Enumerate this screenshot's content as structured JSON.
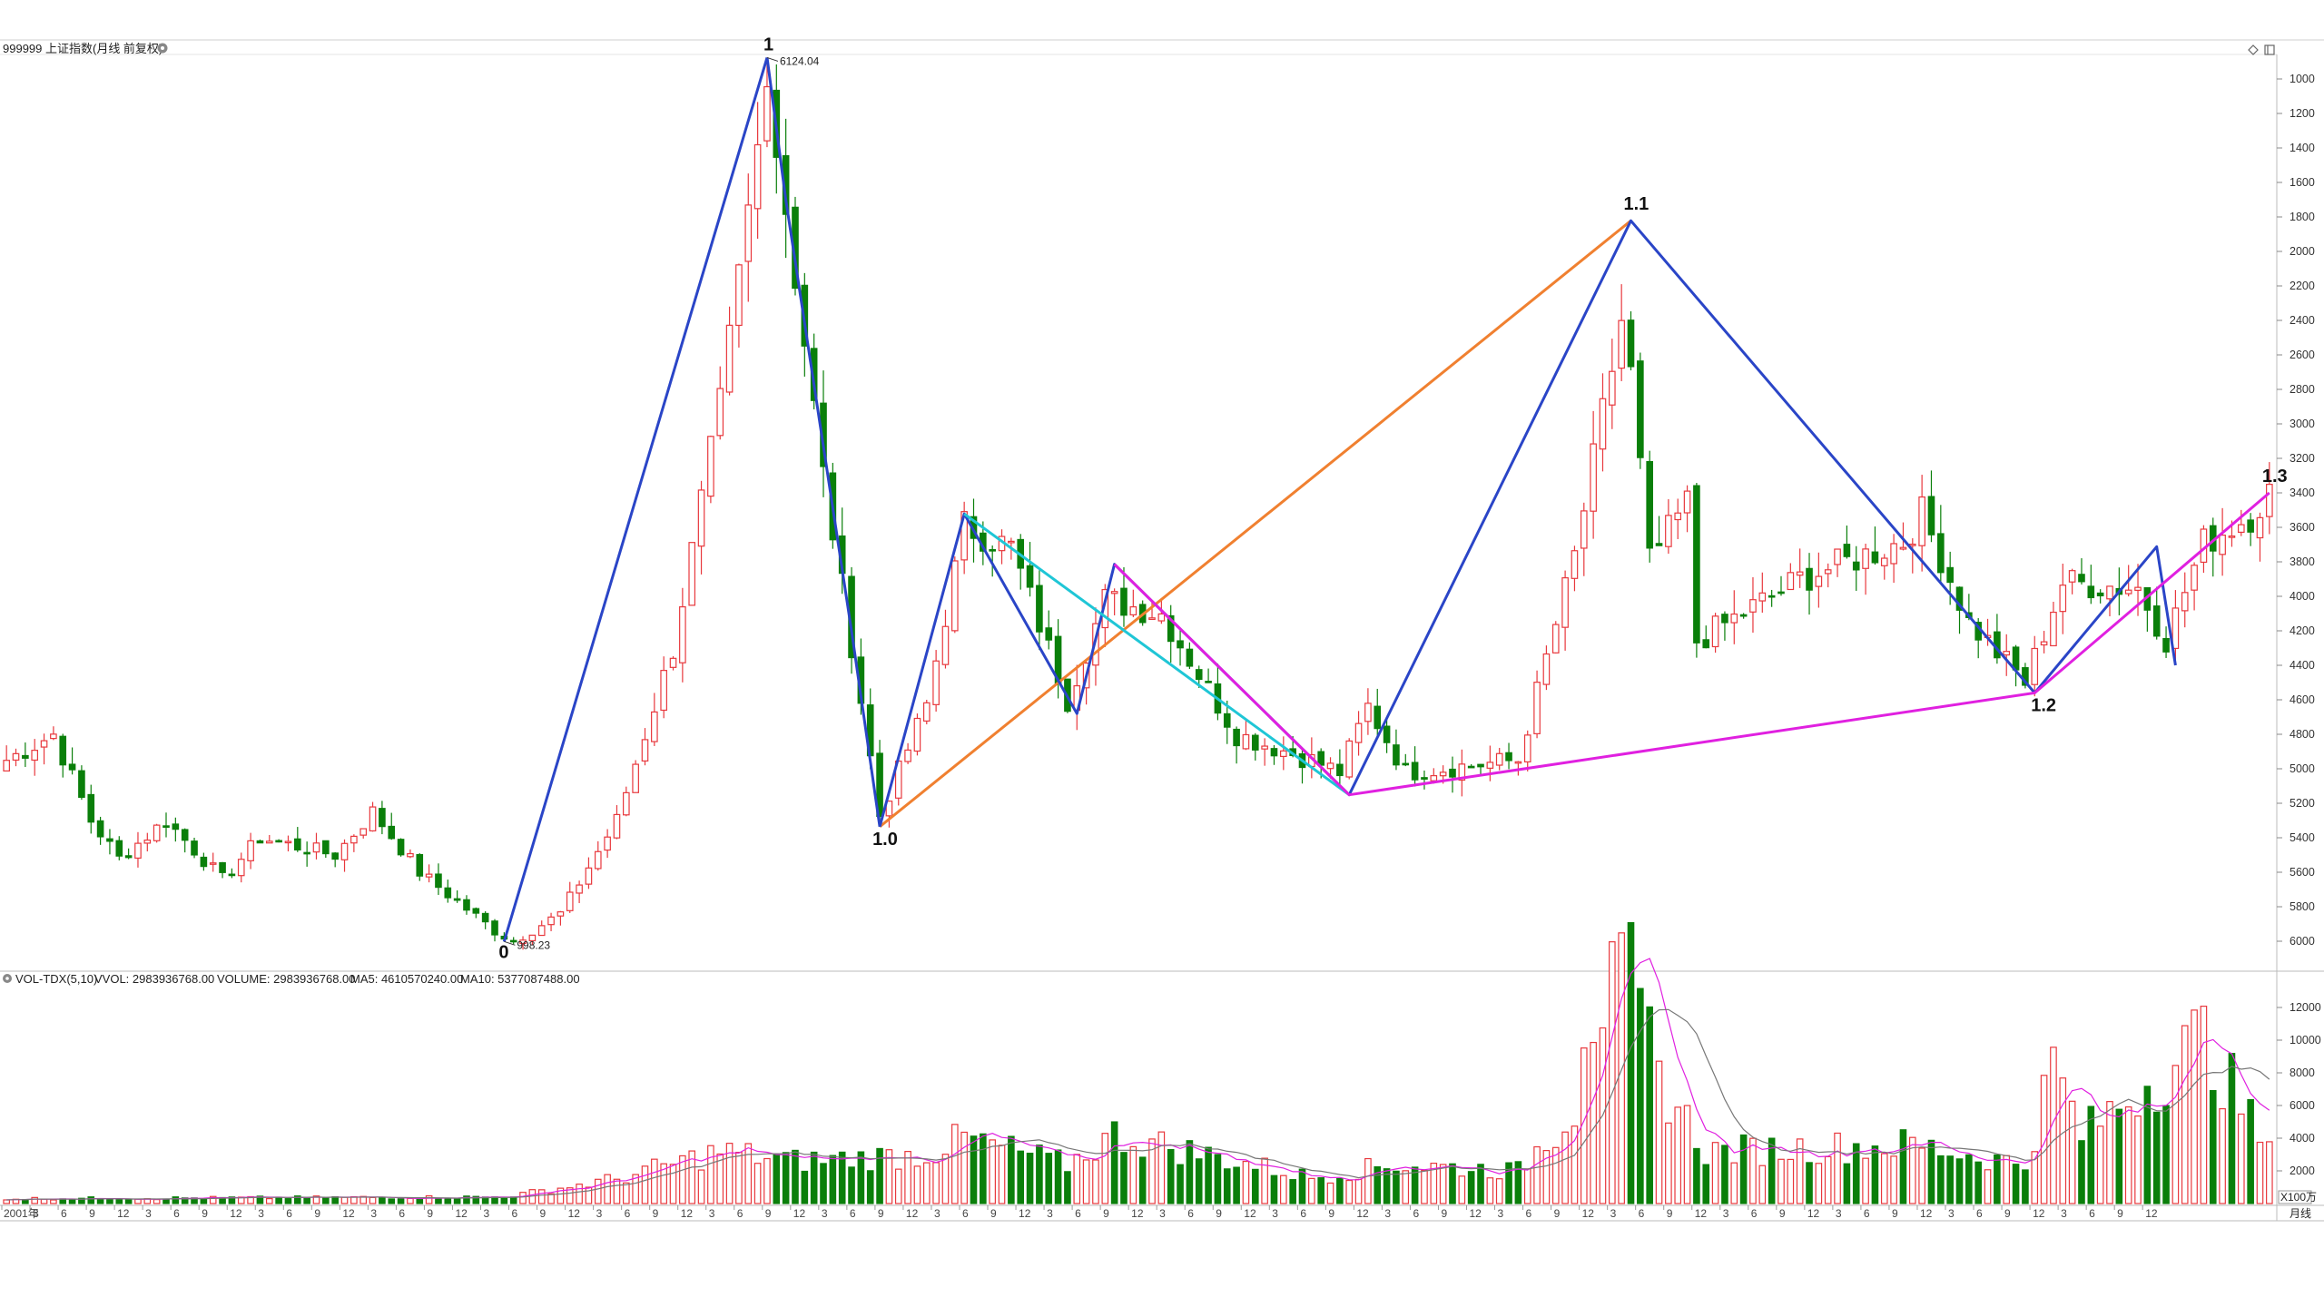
{
  "header": {
    "symbol_title": "999999 上证指数(月线 前复权)",
    "settings_icon": "gear-circle-icon",
    "top_right_icons": [
      "diamond-icon",
      "window-restore-icon"
    ]
  },
  "volume_header": {
    "name": "VOL-TDX(5,10)",
    "vvol": "VVOL: 2983936768.00",
    "volume": "VOLUME: 2983936768.00",
    "ma5": "MA5: 4610570240.00",
    "ma10": "MA10: 5377087488.00"
  },
  "price_axis_ticks": [
    "6000",
    "5800",
    "5600",
    "5400",
    "5200",
    "5000",
    "4800",
    "4600",
    "4400",
    "4200",
    "4000",
    "3800",
    "3600",
    "3400",
    "3200",
    "3000",
    "2800",
    "2600",
    "2400",
    "2200",
    "2000",
    "1800",
    "1600",
    "1400",
    "1200",
    "1000"
  ],
  "volume_axis_ticks": [
    "12000",
    "10000",
    "8000",
    "6000",
    "4000",
    "2000"
  ],
  "volume_unit": "X100万",
  "period_label": "月线",
  "time_axis_labels": [
    "2001年",
    "3",
    "6",
    "9",
    "12",
    "3",
    "6",
    "9",
    "12",
    "3",
    "6",
    "9",
    "12",
    "3",
    "6",
    "9",
    "12",
    "3",
    "6",
    "9",
    "12",
    "3",
    "6",
    "9",
    "12",
    "3",
    "6",
    "9",
    "12",
    "3",
    "6",
    "9",
    "12",
    "3",
    "6",
    "9",
    "12",
    "3",
    "6",
    "9",
    "12",
    "3",
    "6",
    "9",
    "12",
    "3",
    "6",
    "9",
    "12",
    "3",
    "6",
    "9",
    "12",
    "3",
    "6",
    "9",
    "12",
    "3",
    "6",
    "9",
    "12",
    "3",
    "6",
    "9",
    "12",
    "3",
    "6",
    "9",
    "12",
    "3",
    "6",
    "9",
    "12",
    "3",
    "6",
    "9",
    "12"
  ],
  "price_annotations": {
    "high": "6124.04",
    "low": "998.23"
  },
  "wave_labels": {
    "p0": "0",
    "p1": "1",
    "p10": "1.0",
    "p11": "1.1",
    "p12": "1.2",
    "p13": "1.3"
  },
  "colors": {
    "up": "#e8383d",
    "down": "#0a7f0a",
    "wave_blue": "#2a45c7",
    "wave_orange": "#f08030",
    "wave_cyan": "#1fc6d6",
    "wave_magenta": "#e020e0",
    "ma5": "#e020e0",
    "ma10": "#777777",
    "vvol_text": "#1a2aa8",
    "grid": "#dddddd"
  },
  "chart_data": [
    {
      "type": "candlestick",
      "title": "999999 上证指数(月线 前复权)",
      "period": "monthly",
      "x_start": "2001-01",
      "x_end": "2021-02",
      "ylim": [
        900,
        6300
      ],
      "yticks": [
        1000,
        1200,
        1400,
        1600,
        1800,
        2000,
        2200,
        2400,
        2600,
        2800,
        3000,
        3200,
        3400,
        3600,
        3800,
        4000,
        4200,
        4400,
        4600,
        4800,
        5000,
        5200,
        5400,
        5600,
        5800,
        6000
      ],
      "close_anchors": [
        {
          "date": "2001-01",
          "close": 2050
        },
        {
          "date": "2001-06",
          "close": 2200
        },
        {
          "date": "2001-10",
          "close": 1700
        },
        {
          "date": "2002-01",
          "close": 1480
        },
        {
          "date": "2002-06",
          "close": 1700
        },
        {
          "date": "2002-12",
          "close": 1360
        },
        {
          "date": "2003-04",
          "close": 1600
        },
        {
          "date": "2003-12",
          "close": 1500
        },
        {
          "date": "2004-04",
          "close": 1750
        },
        {
          "date": "2004-09",
          "close": 1400
        },
        {
          "date": "2005-05",
          "close": 1060
        },
        {
          "date": "2005-07",
          "close": 1000
        },
        {
          "date": "2005-12",
          "close": 1160
        },
        {
          "date": "2006-06",
          "close": 1700
        },
        {
          "date": "2006-12",
          "close": 2700
        },
        {
          "date": "2007-05",
          "close": 4100
        },
        {
          "date": "2007-09",
          "close": 5600
        },
        {
          "date": "2007-10",
          "close": 5950
        },
        {
          "date": "2007-12",
          "close": 5260
        },
        {
          "date": "2008-04",
          "close": 3700
        },
        {
          "date": "2008-08",
          "close": 2400
        },
        {
          "date": "2008-10",
          "close": 1730
        },
        {
          "date": "2009-03",
          "close": 2370
        },
        {
          "date": "2009-07",
          "close": 3410
        },
        {
          "date": "2009-12",
          "close": 3280
        },
        {
          "date": "2010-06",
          "close": 2400
        },
        {
          "date": "2010-10",
          "close": 2980
        },
        {
          "date": "2011-04",
          "close": 2900
        },
        {
          "date": "2011-12",
          "close": 2200
        },
        {
          "date": "2012-08",
          "close": 2050
        },
        {
          "date": "2012-11",
          "close": 1980
        },
        {
          "date": "2013-02",
          "close": 2360
        },
        {
          "date": "2013-06",
          "close": 1980
        },
        {
          "date": "2014-06",
          "close": 2050
        },
        {
          "date": "2014-12",
          "close": 3230
        },
        {
          "date": "2015-05",
          "close": 4600
        },
        {
          "date": "2015-06",
          "close": 4280
        },
        {
          "date": "2015-08",
          "close": 3200
        },
        {
          "date": "2015-12",
          "close": 3540
        },
        {
          "date": "2016-01",
          "close": 2740
        },
        {
          "date": "2016-12",
          "close": 3100
        },
        {
          "date": "2017-11",
          "close": 3320
        },
        {
          "date": "2018-01",
          "close": 3480
        },
        {
          "date": "2018-06",
          "close": 2850
        },
        {
          "date": "2018-12",
          "close": 2500
        },
        {
          "date": "2019-04",
          "close": 3080
        },
        {
          "date": "2019-12",
          "close": 3050
        },
        {
          "date": "2020-03",
          "close": 2750
        },
        {
          "date": "2020-07",
          "close": 3310
        },
        {
          "date": "2020-12",
          "close": 3470
        },
        {
          "date": "2021-02",
          "close": 3600
        }
      ],
      "annotations": [
        {
          "text": "6124.04",
          "date": "2007-10",
          "value": 6124.04
        },
        {
          "text": "998.23",
          "date": "2005-06",
          "value": 998.23
        }
      ]
    },
    {
      "type": "line",
      "title": "Wave counts",
      "series": [
        {
          "name": "0-1",
          "color": "#2a45c7",
          "points": [
            {
              "date": "2005-06",
              "value": 998
            },
            {
              "date": "2007-10",
              "value": 6124
            }
          ]
        },
        {
          "name": "1-1.0",
          "color": "#2a45c7",
          "points": [
            {
              "date": "2007-10",
              "value": 6124
            },
            {
              "date": "2007-12",
              "value": 5300
            },
            {
              "date": "2008-07",
              "value": 2800
            },
            {
              "date": "2008-10",
              "value": 1664
            }
          ]
        },
        {
          "name": "1.0-1.1",
          "color": "#f08030",
          "points": [
            {
              "date": "2008-10",
              "value": 1664
            },
            {
              "date": "2015-06",
              "value": 5178
            }
          ]
        },
        {
          "name": "1.1 zigzag",
          "color": "#2a45c7",
          "points": [
            {
              "date": "2008-10",
              "value": 1664
            },
            {
              "date": "2009-07",
              "value": 3478
            },
            {
              "date": "2010-07",
              "value": 2320
            },
            {
              "date": "2010-11",
              "value": 3186
            },
            {
              "date": "2012-12",
              "value": 1849
            },
            {
              "date": "2015-06",
              "value": 5178
            },
            {
              "date": "2019-01",
              "value": 2440
            },
            {
              "date": "2020-02",
              "value": 3288
            },
            {
              "date": "2020-04",
              "value": 2600
            }
          ]
        },
        {
          "name": "channel",
          "color": "#1fc6d6",
          "points": [
            {
              "date": "2009-07",
              "value": 3478
            },
            {
              "date": "2012-12",
              "value": 1849
            }
          ]
        },
        {
          "name": "1.2-1.3",
          "color": "#e020e0",
          "points": [
            {
              "date": "2010-11",
              "value": 3186
            },
            {
              "date": "2012-12",
              "value": 1849
            },
            {
              "date": "2019-01",
              "value": 2440
            },
            {
              "date": "2021-02",
              "value": 3600
            }
          ]
        }
      ]
    },
    {
      "type": "bar",
      "title": "VOL-TDX(5,10)",
      "ylim": [
        0,
        13500
      ],
      "unit": "X100万",
      "volume_anchors": [
        {
          "date": "2001-01",
          "value": 300
        },
        {
          "date": "2005-06",
          "value": 400
        },
        {
          "date": "2006-06",
          "value": 1500
        },
        {
          "date": "2007-05",
          "value": 3200
        },
        {
          "date": "2008-01",
          "value": 2600
        },
        {
          "date": "2009-03",
          "value": 3000
        },
        {
          "date": "2009-07",
          "value": 4000
        },
        {
          "date": "2010-06",
          "value": 2400
        },
        {
          "date": "2010-11",
          "value": 4200
        },
        {
          "date": "2012-08",
          "value": 1600
        },
        {
          "date": "2013-05",
          "value": 2400
        },
        {
          "date": "2014-06",
          "value": 2000
        },
        {
          "date": "2014-12",
          "value": 6000
        },
        {
          "date": "2015-01",
          "value": 11800
        },
        {
          "date": "2015-06",
          "value": 13300
        },
        {
          "date": "2015-09",
          "value": 7800
        },
        {
          "date": "2016-02",
          "value": 3200
        },
        {
          "date": "2017-12",
          "value": 3600
        },
        {
          "date": "2018-12",
          "value": 2400
        },
        {
          "date": "2019-03",
          "value": 8600
        },
        {
          "date": "2019-06",
          "value": 4200
        },
        {
          "date": "2020-07",
          "value": 10200
        },
        {
          "date": "2021-02",
          "value": 3000
        }
      ],
      "last_volume": 2983936768.0,
      "ma5": 4610570240.0,
      "ma10": 5377087488.0
    }
  ]
}
